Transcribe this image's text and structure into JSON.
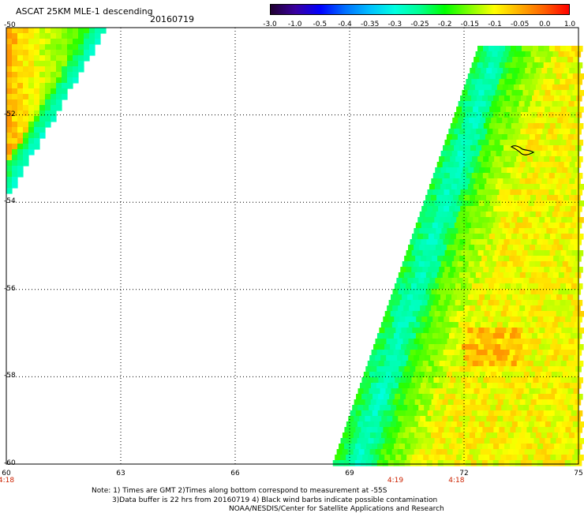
{
  "header": {
    "title": "ASCAT 25KM MLE-1 descending",
    "date": "20160719"
  },
  "colorbar": {
    "labels": [
      "-3.0",
      "-1.0",
      "-0.5",
      "-0.4",
      "-0.35",
      "-0.3",
      "-0.25",
      "-0.2",
      "-0.15",
      "-0.1",
      "-0.05",
      "0.0",
      "1.0"
    ],
    "colors": [
      "#200030",
      "#3a00a0",
      "#0000ff",
      "#0070ff",
      "#00c0ff",
      "#00ffe0",
      "#00ff90",
      "#00ff00",
      "#80ff00",
      "#ffff00",
      "#ffb000",
      "#ff6000",
      "#ff0000"
    ]
  },
  "map": {
    "lon_labels": [
      "60",
      "63",
      "66",
      "69",
      "72",
      "75"
    ],
    "lat_labels": [
      "-50",
      "-52",
      "-54",
      "-56",
      "-58",
      "-60"
    ],
    "lon_range": [
      60,
      75
    ],
    "lat_range": [
      -50,
      -60
    ],
    "time_labels": [
      {
        "text": "4:18",
        "lon": 60
      },
      {
        "text": "4:19",
        "lon": 70.2
      },
      {
        "text": "4:18",
        "lon": 71.8
      }
    ]
  },
  "notes": {
    "line1": "Note: 1) Times are GMT 2)Times along bottom correspond to measurement at -55S",
    "line2": "3)Data buffer is 22 hrs from 20160719 4) Black wind barbs indicate possible contamination",
    "line3": "NOAA/NESDIS/Center for Satellite Applications and Research"
  }
}
